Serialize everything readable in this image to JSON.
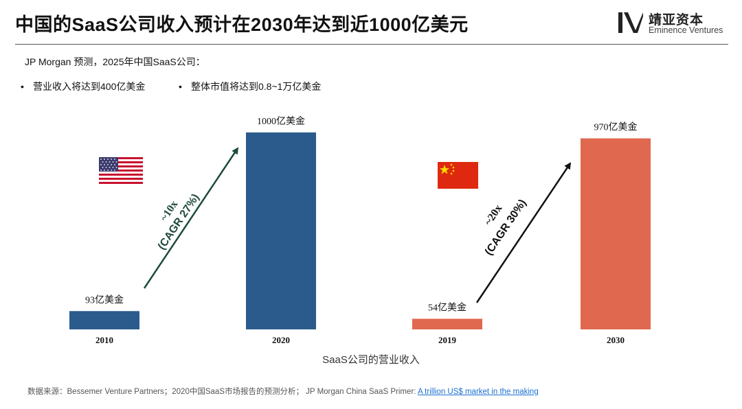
{
  "slide": {
    "title": "中国的SaaS公司收入预计在2030年达到近1000亿美元",
    "intro": "JP Morgan 预测，2025年中国SaaS公司：",
    "bullets": [
      "营业收入将达到400亿美金",
      "整体市值将达到0.8~1万亿美金"
    ],
    "bullet_symbol": "•"
  },
  "logo": {
    "cn": "靖亚资本",
    "en": "Eminence Ventures"
  },
  "chart_data": [
    {
      "type": "bar",
      "country": "US",
      "flag_icon": "us-flag-icon",
      "categories": [
        "2010",
        "2020"
      ],
      "values": [
        93,
        1000
      ],
      "data_labels": [
        "93亿美金",
        "1000亿美金"
      ],
      "color": "#2a5b8c",
      "annotation": {
        "line1": "~10x",
        "line2": "(CAGR 27%)",
        "arrow_color": "#1e4a3e"
      },
      "ylim": [
        0,
        1000
      ]
    },
    {
      "type": "bar",
      "country": "CN",
      "flag_icon": "china-flag-icon",
      "categories": [
        "2019",
        "2030"
      ],
      "values": [
        54,
        970
      ],
      "data_labels": [
        "54亿美金",
        "970亿美金"
      ],
      "color": "#e0684f",
      "annotation": {
        "line1": "~20x",
        "line2": "(CAGR 30%)",
        "arrow_color": "#111111"
      },
      "ylim": [
        0,
        1000
      ]
    }
  ],
  "xaxis_title": "SaaS公司的营业收入",
  "source": {
    "text": "数据来源：Bessemer Venture Partners；2020中国SaaS市场报告的预测分析；  JP Morgan China SaaS Primer: ",
    "link": "A trillion US$ market in  the making"
  }
}
